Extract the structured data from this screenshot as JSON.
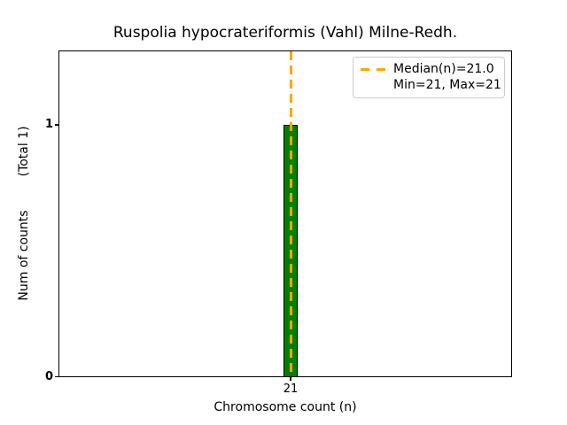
{
  "chart_data": {
    "type": "bar",
    "title": "Ruspolia hypocrateriformis (Vahl) Milne-Redh.",
    "xlabel": "Chromosome count (n)",
    "ylabel": "Num of counts",
    "ylabel_note": "(Total 1)",
    "categories": [
      21
    ],
    "values": [
      1
    ],
    "x_tick_labels": [
      "21"
    ],
    "y_tick_labels": [
      "0",
      "1"
    ],
    "ylim": [
      0,
      1.3
    ],
    "median": 21.0,
    "min": 21,
    "max": 21,
    "total_counts": 1,
    "grid": false,
    "legend_position": "upper right",
    "legend": [
      "Median(n)=21.0",
      "Min=21, Max=21"
    ],
    "colors": {
      "bar_fill": "#008000",
      "bar_edge": "#000000",
      "median_line": "#FFA500",
      "legend_border": "#cccccc",
      "axis": "#000000",
      "background": "#ffffff"
    }
  }
}
